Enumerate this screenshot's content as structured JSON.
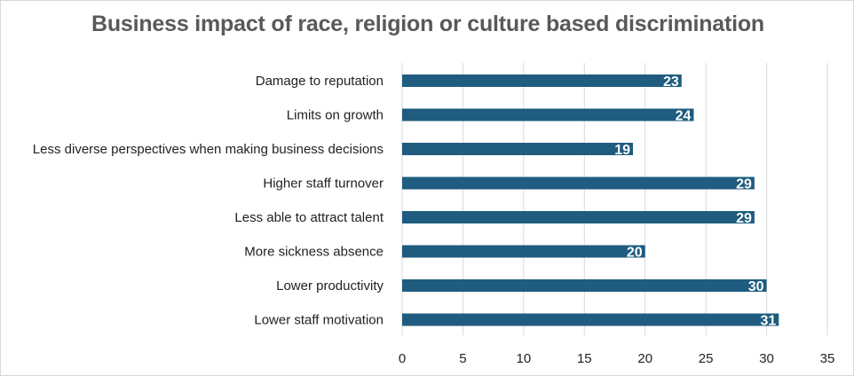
{
  "chart_data": {
    "type": "bar",
    "orientation": "horizontal",
    "title": "Business impact of race, religion or culture based discrimination",
    "categories": [
      "Damage to reputation",
      "Limits on growth",
      "Less diverse perspectives when making business decisions",
      "Higher staff turnover",
      "Less able to attract talent",
      "More sickness absence",
      "Lower productivity",
      "Lower staff motivation"
    ],
    "values": [
      23,
      24,
      19,
      29,
      29,
      20,
      30,
      31
    ],
    "xlim": [
      0,
      35
    ],
    "xticks": [
      0,
      5,
      10,
      15,
      20,
      25,
      30,
      35
    ],
    "xlabel": "",
    "ylabel": "",
    "grid": true,
    "bar_color": "#1f5c7f",
    "label_color": "#ffffff"
  }
}
